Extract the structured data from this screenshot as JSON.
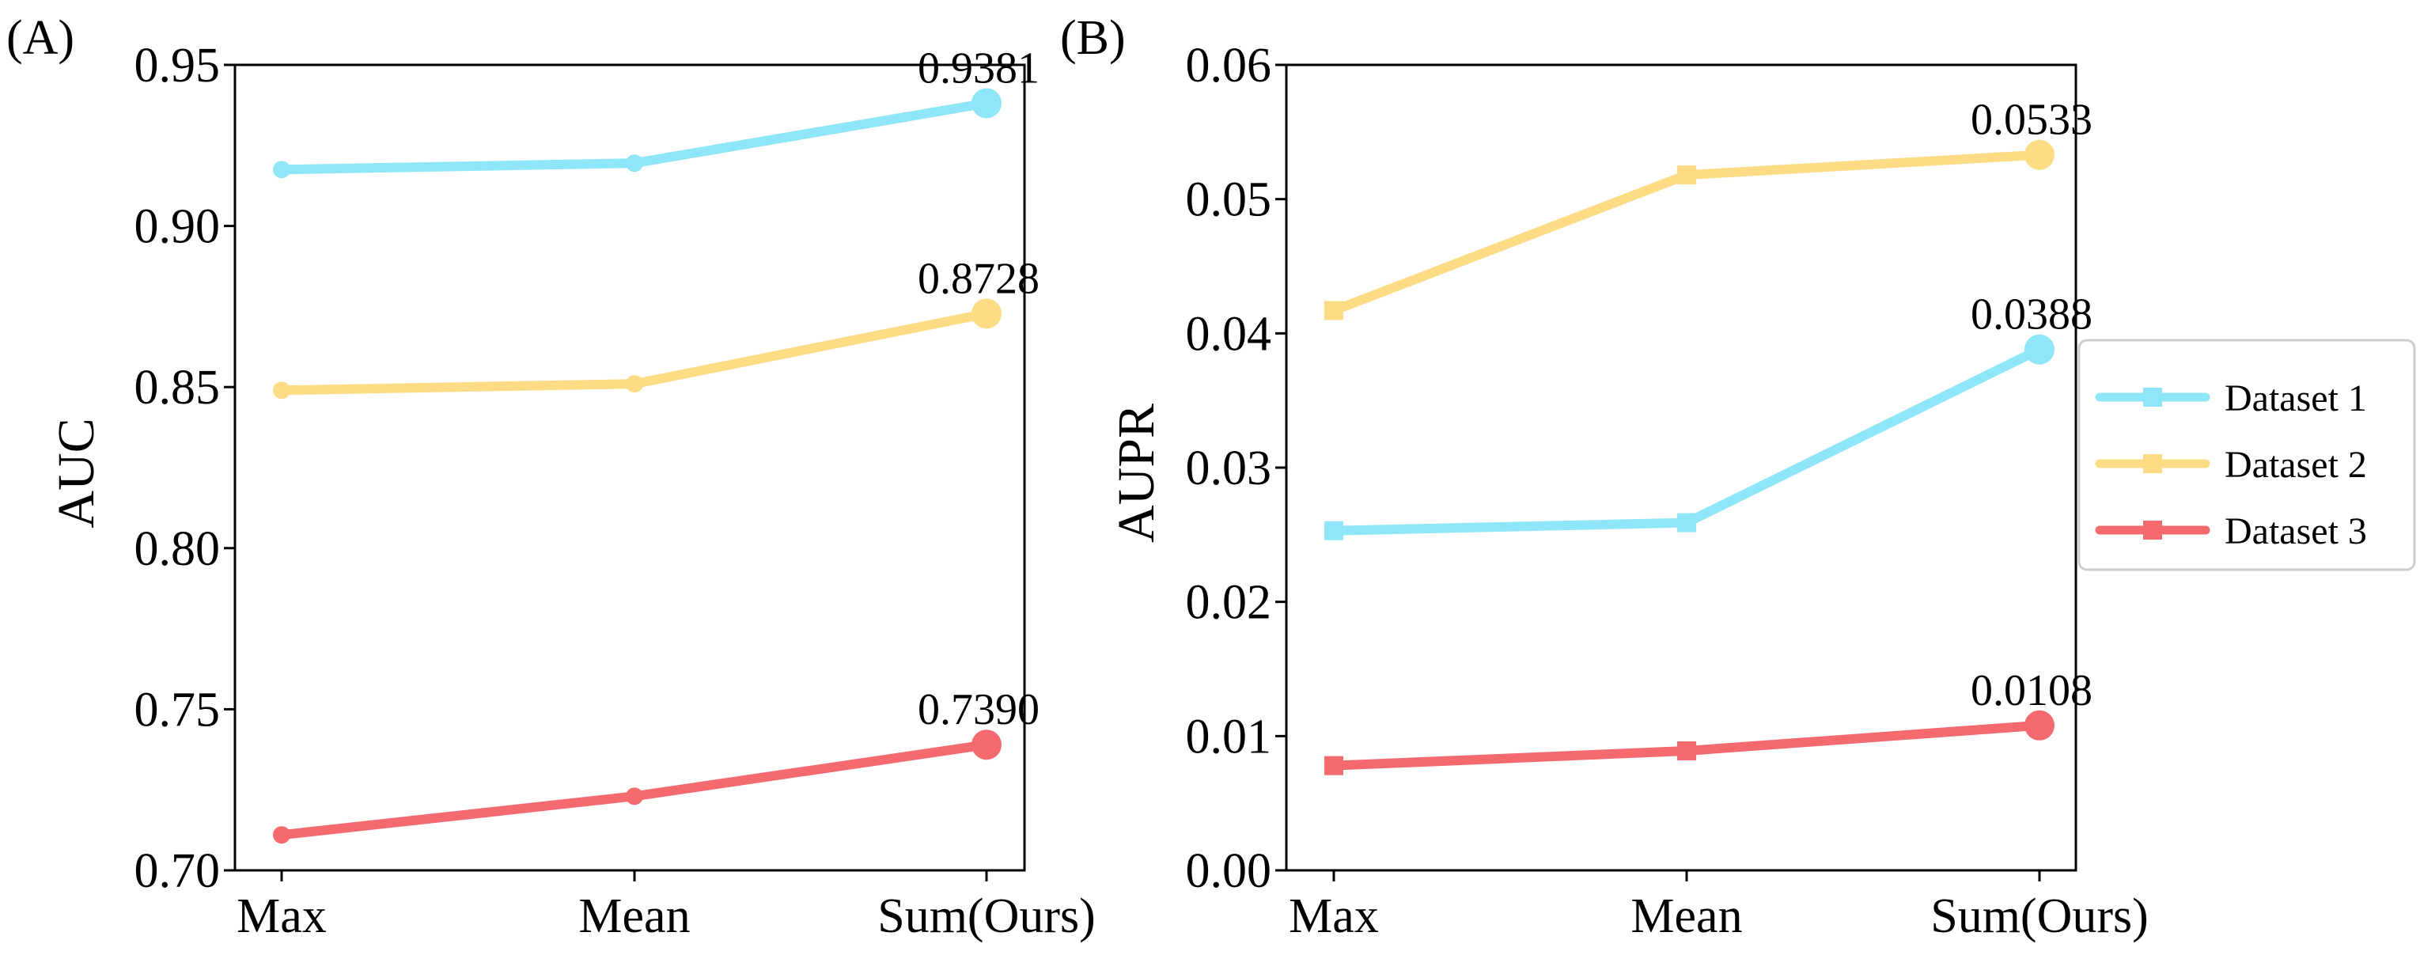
{
  "chart_data": [
    {
      "type": "line",
      "panel_label": "(A)",
      "ylabel": "AUC",
      "xlabel": "",
      "categories": [
        "Max",
        "Mean",
        "Sum(Ours)"
      ],
      "ylim": [
        0.7,
        0.95
      ],
      "yticks": [
        0.7,
        0.75,
        0.8,
        0.85,
        0.9,
        0.95
      ],
      "ytick_labels": [
        "0.70",
        "0.75",
        "0.80",
        "0.85",
        "0.90",
        "0.95"
      ],
      "grid": false,
      "series": [
        {
          "name": "Dataset 1",
          "color": "#8EE6F8",
          "values": [
            0.9175,
            0.9195,
            0.9381
          ],
          "marker": "circle"
        },
        {
          "name": "Dataset 2",
          "color": "#FDDC85",
          "values": [
            0.849,
            0.851,
            0.8728
          ],
          "marker": "circle"
        },
        {
          "name": "Dataset 3",
          "color": "#F56A6E",
          "values": [
            0.711,
            0.723,
            0.739
          ],
          "marker": "circle"
        }
      ],
      "annotations": [
        {
          "series": 0,
          "index": 2,
          "text": "0.9381"
        },
        {
          "series": 1,
          "index": 2,
          "text": "0.8728"
        },
        {
          "series": 2,
          "index": 2,
          "text": "0.7390"
        }
      ]
    },
    {
      "type": "line",
      "panel_label": "(B)",
      "ylabel": "AUPR",
      "xlabel": "",
      "categories": [
        "Max",
        "Mean",
        "Sum(Ours)"
      ],
      "ylim": [
        0.0,
        0.06
      ],
      "yticks": [
        0.0,
        0.01,
        0.02,
        0.03,
        0.04,
        0.05,
        0.06
      ],
      "ytick_labels": [
        "0.00",
        "0.01",
        "0.02",
        "0.03",
        "0.04",
        "0.05",
        "0.06"
      ],
      "grid": false,
      "series": [
        {
          "name": "Dataset 1",
          "color": "#8EE6F8",
          "values": [
            0.0253,
            0.0259,
            0.0388
          ],
          "marker": "square"
        },
        {
          "name": "Dataset 2",
          "color": "#FDDC85",
          "values": [
            0.0417,
            0.0518,
            0.0533
          ],
          "marker": "square"
        },
        {
          "name": "Dataset 3",
          "color": "#F56A6E",
          "values": [
            0.0078,
            0.0089,
            0.0108
          ],
          "marker": "square"
        }
      ],
      "annotations": [
        {
          "series": 1,
          "index": 2,
          "text": "0.0533"
        },
        {
          "series": 0,
          "index": 2,
          "text": "0.0388"
        },
        {
          "series": 2,
          "index": 2,
          "text": "0.0108"
        }
      ]
    }
  ],
  "legend": {
    "placement": "right",
    "entries": [
      {
        "name": "Dataset 1",
        "color": "#8EE6F8"
      },
      {
        "name": "Dataset 2",
        "color": "#FDDC85"
      },
      {
        "name": "Dataset 3",
        "color": "#F56A6E"
      }
    ]
  }
}
